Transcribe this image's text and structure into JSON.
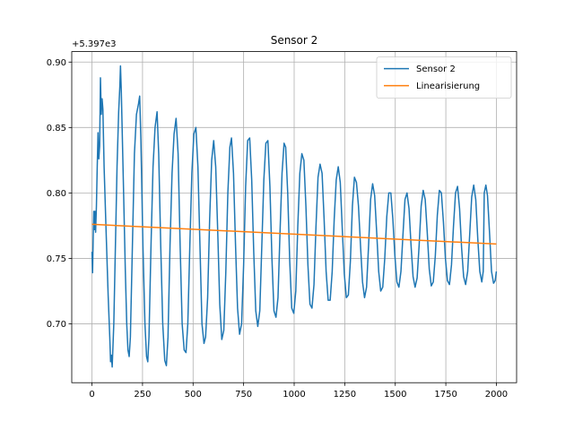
{
  "chart_data": {
    "type": "line",
    "title": "Sensor 2",
    "xlabel": "",
    "ylabel": "",
    "y_offset_label": "+5.397e3",
    "xlim": [
      -100,
      2100
    ],
    "ylim": [
      0.655,
      0.908
    ],
    "x_ticks": [
      0,
      250,
      500,
      750,
      1000,
      1250,
      1500,
      1750,
      2000
    ],
    "x_tick_labels": [
      "0",
      "250",
      "500",
      "750",
      "1000",
      "1250",
      "1500",
      "1750",
      "2000"
    ],
    "y_ticks": [
      0.7,
      0.75,
      0.8,
      0.85,
      0.9
    ],
    "y_tick_labels": [
      "0.70",
      "0.75",
      "0.80",
      "0.85",
      "0.90"
    ],
    "grid": true,
    "legend_position": "top-right",
    "series": [
      {
        "name": "Sensor 2",
        "color": "#1f77b4",
        "points": [
          [
            0,
            0.755
          ],
          [
            3,
            0.739
          ],
          [
            6,
            0.765
          ],
          [
            9,
            0.786
          ],
          [
            12,
            0.772
          ],
          [
            15,
            0.786
          ],
          [
            18,
            0.77
          ],
          [
            22,
            0.79
          ],
          [
            26,
            0.82
          ],
          [
            30,
            0.846
          ],
          [
            34,
            0.826
          ],
          [
            38,
            0.836
          ],
          [
            42,
            0.888
          ],
          [
            46,
            0.86
          ],
          [
            50,
            0.872
          ],
          [
            54,
            0.864
          ],
          [
            60,
            0.82
          ],
          [
            70,
            0.77
          ],
          [
            80,
            0.722
          ],
          [
            88,
            0.69
          ],
          [
            92,
            0.671
          ],
          [
            96,
            0.676
          ],
          [
            100,
            0.667
          ],
          [
            108,
            0.7
          ],
          [
            116,
            0.76
          ],
          [
            124,
            0.82
          ],
          [
            132,
            0.862
          ],
          [
            138,
            0.882
          ],
          [
            141,
            0.897
          ],
          [
            145,
            0.878
          ],
          [
            155,
            0.81
          ],
          [
            165,
            0.74
          ],
          [
            172,
            0.7
          ],
          [
            178,
            0.68
          ],
          [
            184,
            0.675
          ],
          [
            190,
            0.69
          ],
          [
            200,
            0.76
          ],
          [
            210,
            0.83
          ],
          [
            220,
            0.86
          ],
          [
            230,
            0.868
          ],
          [
            236,
            0.874
          ],
          [
            242,
            0.84
          ],
          [
            252,
            0.76
          ],
          [
            262,
            0.7
          ],
          [
            270,
            0.675
          ],
          [
            276,
            0.671
          ],
          [
            282,
            0.69
          ],
          [
            292,
            0.76
          ],
          [
            302,
            0.82
          ],
          [
            312,
            0.85
          ],
          [
            322,
            0.862
          ],
          [
            330,
            0.83
          ],
          [
            340,
            0.76
          ],
          [
            350,
            0.7
          ],
          [
            360,
            0.672
          ],
          [
            368,
            0.668
          ],
          [
            376,
            0.69
          ],
          [
            386,
            0.76
          ],
          [
            396,
            0.815
          ],
          [
            406,
            0.845
          ],
          [
            416,
            0.857
          ],
          [
            426,
            0.83
          ],
          [
            436,
            0.76
          ],
          [
            446,
            0.7
          ],
          [
            456,
            0.68
          ],
          [
            465,
            0.678
          ],
          [
            474,
            0.7
          ],
          [
            484,
            0.76
          ],
          [
            494,
            0.815
          ],
          [
            504,
            0.845
          ],
          [
            514,
            0.85
          ],
          [
            524,
            0.82
          ],
          [
            534,
            0.76
          ],
          [
            544,
            0.7
          ],
          [
            554,
            0.685
          ],
          [
            562,
            0.69
          ],
          [
            572,
            0.72
          ],
          [
            582,
            0.78
          ],
          [
            592,
            0.825
          ],
          [
            602,
            0.84
          ],
          [
            612,
            0.82
          ],
          [
            622,
            0.77
          ],
          [
            632,
            0.715
          ],
          [
            642,
            0.688
          ],
          [
            652,
            0.695
          ],
          [
            662,
            0.74
          ],
          [
            672,
            0.8
          ],
          [
            682,
            0.835
          ],
          [
            690,
            0.842
          ],
          [
            700,
            0.815
          ],
          [
            710,
            0.76
          ],
          [
            720,
            0.712
          ],
          [
            730,
            0.692
          ],
          [
            740,
            0.7
          ],
          [
            750,
            0.745
          ],
          [
            760,
            0.805
          ],
          [
            770,
            0.84
          ],
          [
            780,
            0.842
          ],
          [
            790,
            0.81
          ],
          [
            800,
            0.755
          ],
          [
            810,
            0.71
          ],
          [
            820,
            0.698
          ],
          [
            830,
            0.71
          ],
          [
            840,
            0.76
          ],
          [
            850,
            0.81
          ],
          [
            860,
            0.838
          ],
          [
            870,
            0.84
          ],
          [
            880,
            0.805
          ],
          [
            890,
            0.75
          ],
          [
            900,
            0.71
          ],
          [
            910,
            0.705
          ],
          [
            920,
            0.72
          ],
          [
            930,
            0.77
          ],
          [
            940,
            0.815
          ],
          [
            950,
            0.838
          ],
          [
            958,
            0.835
          ],
          [
            968,
            0.8
          ],
          [
            978,
            0.748
          ],
          [
            988,
            0.712
          ],
          [
            998,
            0.708
          ],
          [
            1008,
            0.725
          ],
          [
            1018,
            0.775
          ],
          [
            1028,
            0.815
          ],
          [
            1038,
            0.83
          ],
          [
            1048,
            0.825
          ],
          [
            1058,
            0.79
          ],
          [
            1068,
            0.745
          ],
          [
            1078,
            0.715
          ],
          [
            1088,
            0.712
          ],
          [
            1098,
            0.73
          ],
          [
            1108,
            0.775
          ],
          [
            1118,
            0.812
          ],
          [
            1128,
            0.822
          ],
          [
            1138,
            0.815
          ],
          [
            1148,
            0.78
          ],
          [
            1158,
            0.74
          ],
          [
            1168,
            0.718
          ],
          [
            1178,
            0.718
          ],
          [
            1188,
            0.74
          ],
          [
            1198,
            0.78
          ],
          [
            1208,
            0.81
          ],
          [
            1218,
            0.82
          ],
          [
            1228,
            0.808
          ],
          [
            1238,
            0.772
          ],
          [
            1248,
            0.738
          ],
          [
            1258,
            0.72
          ],
          [
            1268,
            0.722
          ],
          [
            1278,
            0.748
          ],
          [
            1288,
            0.79
          ],
          [
            1298,
            0.812
          ],
          [
            1308,
            0.808
          ],
          [
            1318,
            0.79
          ],
          [
            1328,
            0.76
          ],
          [
            1338,
            0.732
          ],
          [
            1348,
            0.72
          ],
          [
            1358,
            0.728
          ],
          [
            1368,
            0.76
          ],
          [
            1378,
            0.795
          ],
          [
            1388,
            0.807
          ],
          [
            1398,
            0.798
          ],
          [
            1408,
            0.77
          ],
          [
            1418,
            0.74
          ],
          [
            1428,
            0.725
          ],
          [
            1438,
            0.728
          ],
          [
            1448,
            0.75
          ],
          [
            1458,
            0.782
          ],
          [
            1468,
            0.8
          ],
          [
            1478,
            0.8
          ],
          [
            1488,
            0.78
          ],
          [
            1498,
            0.752
          ],
          [
            1508,
            0.732
          ],
          [
            1518,
            0.728
          ],
          [
            1528,
            0.74
          ],
          [
            1538,
            0.768
          ],
          [
            1548,
            0.795
          ],
          [
            1558,
            0.8
          ],
          [
            1568,
            0.788
          ],
          [
            1578,
            0.76
          ],
          [
            1588,
            0.736
          ],
          [
            1598,
            0.728
          ],
          [
            1608,
            0.735
          ],
          [
            1618,
            0.76
          ],
          [
            1628,
            0.79
          ],
          [
            1638,
            0.802
          ],
          [
            1648,
            0.795
          ],
          [
            1658,
            0.77
          ],
          [
            1668,
            0.742
          ],
          [
            1678,
            0.729
          ],
          [
            1688,
            0.732
          ],
          [
            1698,
            0.752
          ],
          [
            1708,
            0.783
          ],
          [
            1718,
            0.802
          ],
          [
            1728,
            0.8
          ],
          [
            1738,
            0.778
          ],
          [
            1748,
            0.75
          ],
          [
            1758,
            0.733
          ],
          [
            1768,
            0.73
          ],
          [
            1778,
            0.745
          ],
          [
            1788,
            0.775
          ],
          [
            1798,
            0.8
          ],
          [
            1808,
            0.805
          ],
          [
            1818,
            0.788
          ],
          [
            1828,
            0.758
          ],
          [
            1838,
            0.736
          ],
          [
            1848,
            0.73
          ],
          [
            1858,
            0.74
          ],
          [
            1868,
            0.768
          ],
          [
            1878,
            0.797
          ],
          [
            1888,
            0.806
          ],
          [
            1898,
            0.795
          ],
          [
            1908,
            0.765
          ],
          [
            1918,
            0.74
          ],
          [
            1928,
            0.732
          ],
          [
            1935,
            0.74
          ],
          [
            1940,
            0.8
          ],
          [
            1948,
            0.806
          ],
          [
            1956,
            0.798
          ],
          [
            1966,
            0.77
          ],
          [
            1976,
            0.74
          ],
          [
            1986,
            0.731
          ],
          [
            1994,
            0.733
          ],
          [
            2000,
            0.74
          ]
        ]
      },
      {
        "name": "Linearisierung",
        "color": "#ff7f0e",
        "points": [
          [
            0,
            0.776
          ],
          [
            2000,
            0.761
          ]
        ]
      }
    ]
  }
}
